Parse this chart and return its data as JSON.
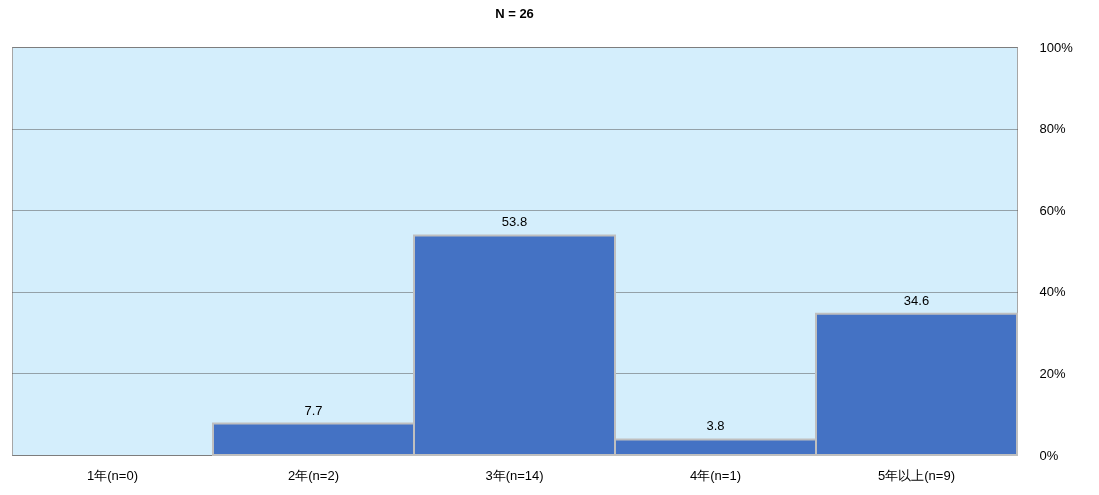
{
  "chart_data": {
    "type": "bar",
    "title": "N = 26",
    "categories": [
      "1年(n=0)",
      "2年(n=2)",
      "3年(n=14)",
      "4年(n=1)",
      "5年以上(n=9)"
    ],
    "values": [
      0,
      7.7,
      53.8,
      3.8,
      34.6
    ],
    "value_labels": [
      null,
      "7.7",
      "53.8",
      "3.8",
      "34.6"
    ],
    "color": "#4472c4",
    "ylim": [
      0,
      100
    ],
    "yticks": [
      {
        "value": 0,
        "label": "0%"
      },
      {
        "value": 20,
        "label": "20%"
      },
      {
        "value": 40,
        "label": "40%"
      },
      {
        "value": 60,
        "label": "60%"
      },
      {
        "value": 80,
        "label": "80%"
      },
      {
        "value": 100,
        "label": "100%"
      }
    ],
    "grid": "y"
  }
}
